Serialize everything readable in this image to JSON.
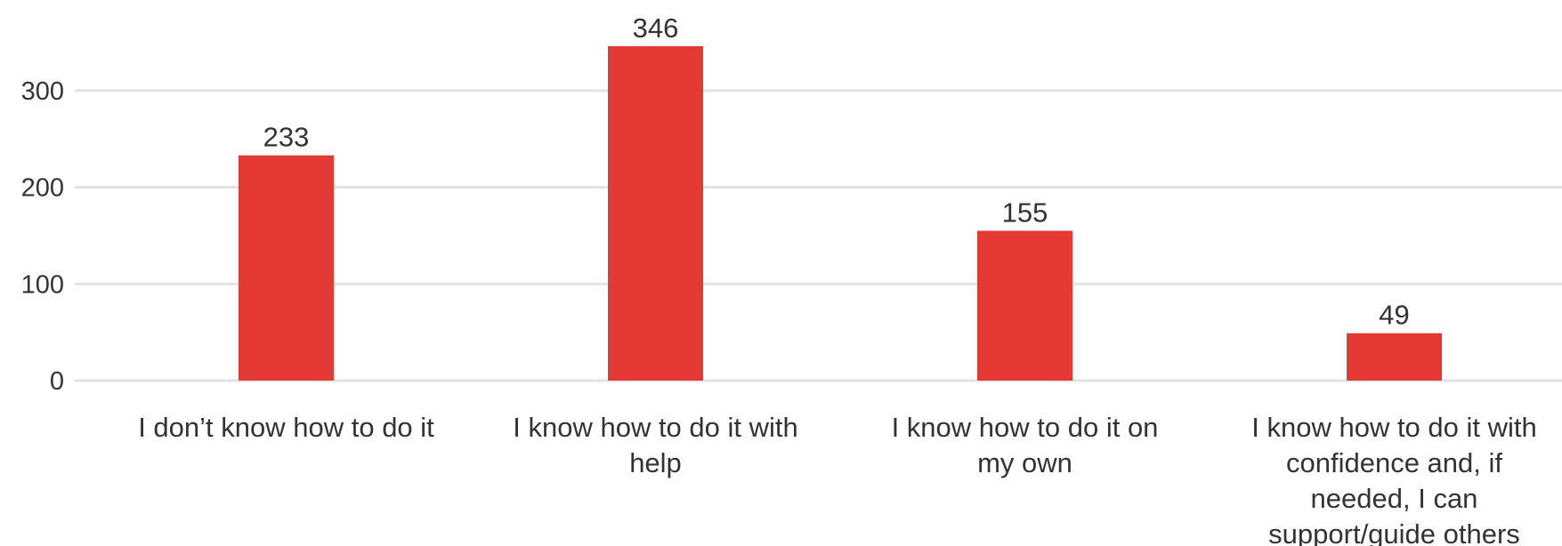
{
  "chart_data": {
    "type": "bar",
    "title": "",
    "xlabel": "",
    "ylabel": "",
    "categories": [
      "I don’t know how to do it",
      "I know how to do it with help",
      "I know how to do it on my own",
      "I know how to do it with confidence and, if needed, I can support/guide others"
    ],
    "category_label_lines": [
      [
        "I don’t know how to do it"
      ],
      [
        "I know how to do it with",
        "help"
      ],
      [
        "I know how to do it on",
        "my own"
      ],
      [
        "I know how to do it with",
        "confidence and, if",
        "needed, I can",
        "support/guide others"
      ]
    ],
    "values": [
      233,
      346,
      155,
      49
    ],
    "data_labels": [
      "233",
      "346",
      "155",
      "49"
    ],
    "yticks": [
      0,
      100,
      200,
      300
    ],
    "ytick_labels": [
      "0",
      "100",
      "200",
      "300"
    ],
    "ylim": [
      0,
      346
    ],
    "grid": true,
    "legend": "none",
    "colors": {
      "bar": "#e53935",
      "grid": "#e3e3e3",
      "text": "#333333"
    }
  }
}
